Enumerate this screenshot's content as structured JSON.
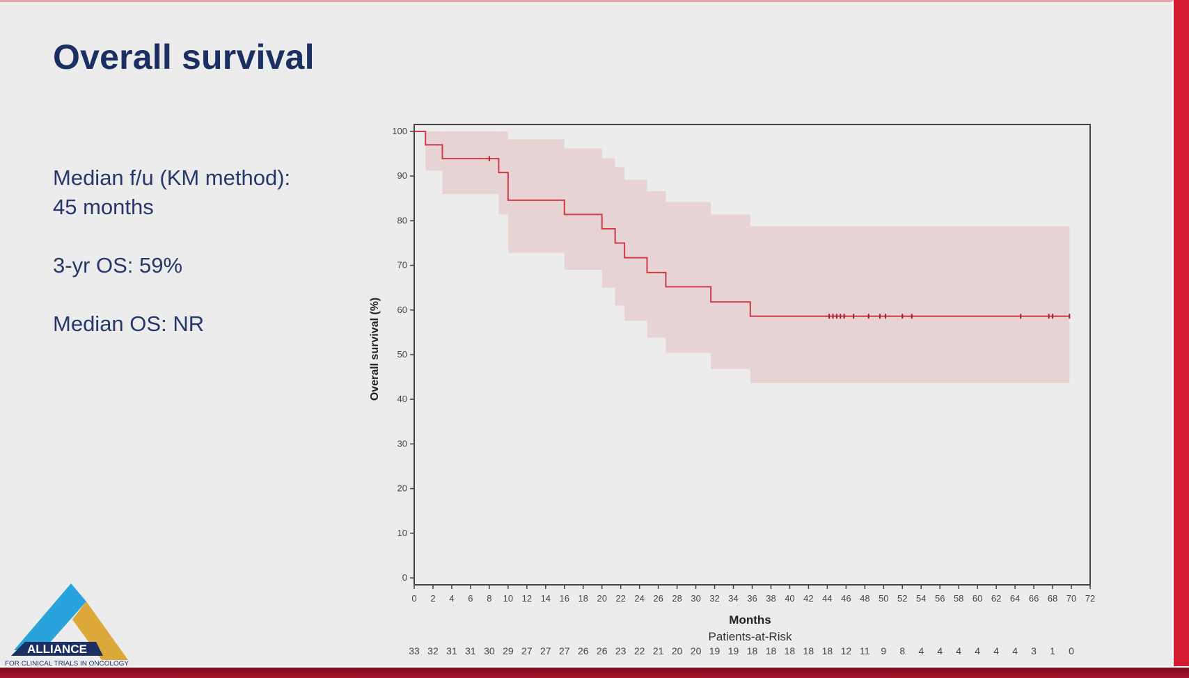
{
  "slide": {
    "title": "Overall survival",
    "stats": [
      {
        "label": "Median f/u (KM method):",
        "value": "45 months"
      },
      {
        "label": "3-yr OS:",
        "value": "59%"
      },
      {
        "label": "Median OS:",
        "value": "NR"
      }
    ],
    "logo": {
      "name": "ALLIANCE",
      "tagline": "FOR CLINICAL TRIALS IN ONCOLOGY",
      "colors": {
        "blue": "#29a3dc",
        "gold": "#dca83a",
        "navy": "#1b2f63"
      }
    }
  },
  "colors": {
    "title": "#1b2f63",
    "curve": "#d23a44",
    "band": "#e8d3d4",
    "axis": "#333333",
    "frame_red": "#d21c32"
  },
  "chart_data": {
    "type": "line",
    "subtype": "kaplan-meier step",
    "title": "",
    "xlabel": "Months",
    "ylabel": "Overall survival (%)",
    "xlim": [
      0,
      72
    ],
    "ylim": [
      0,
      100
    ],
    "xticks": [
      0,
      2,
      4,
      6,
      8,
      10,
      12,
      14,
      16,
      18,
      20,
      22,
      24,
      26,
      28,
      30,
      32,
      34,
      36,
      38,
      40,
      42,
      44,
      46,
      48,
      50,
      52,
      54,
      56,
      58,
      60,
      62,
      64,
      66,
      68,
      70,
      72
    ],
    "yticks": [
      0,
      10,
      20,
      30,
      40,
      50,
      60,
      70,
      80,
      90,
      100
    ],
    "grid": false,
    "legend": "none",
    "survival_steps": [
      {
        "t": 0,
        "s": 100
      },
      {
        "t": 1.2,
        "s": 97.0
      },
      {
        "t": 3.0,
        "s": 93.9
      },
      {
        "t": 9.0,
        "s": 90.8
      },
      {
        "t": 10.0,
        "s": 84.6
      },
      {
        "t": 16.0,
        "s": 81.4
      },
      {
        "t": 20.0,
        "s": 78.2
      },
      {
        "t": 21.4,
        "s": 75.0
      },
      {
        "t": 22.4,
        "s": 71.7
      },
      {
        "t": 24.8,
        "s": 68.4
      },
      {
        "t": 26.8,
        "s": 65.2
      },
      {
        "t": 31.6,
        "s": 61.8
      },
      {
        "t": 35.8,
        "s": 58.6
      }
    ],
    "curve_end": 69.8,
    "ci_band": [
      {
        "t": 0,
        "lo": 100,
        "hi": 100
      },
      {
        "t": 1.2,
        "lo": 91.2,
        "hi": 100
      },
      {
        "t": 3.0,
        "lo": 86.0,
        "hi": 100
      },
      {
        "t": 9.0,
        "lo": 81.4,
        "hi": 100
      },
      {
        "t": 10.0,
        "lo": 72.8,
        "hi": 98.2
      },
      {
        "t": 16.0,
        "lo": 69.0,
        "hi": 96.2
      },
      {
        "t": 20.0,
        "lo": 65.0,
        "hi": 94.0
      },
      {
        "t": 21.4,
        "lo": 61.0,
        "hi": 92.0
      },
      {
        "t": 22.4,
        "lo": 57.6,
        "hi": 89.2
      },
      {
        "t": 24.8,
        "lo": 53.8,
        "hi": 86.6
      },
      {
        "t": 26.8,
        "lo": 50.4,
        "hi": 84.2
      },
      {
        "t": 31.6,
        "lo": 46.8,
        "hi": 81.4
      },
      {
        "t": 35.8,
        "lo": 43.6,
        "hi": 78.8
      }
    ],
    "censor_times": [
      8.0,
      44.2,
      44.6,
      45.0,
      45.4,
      45.8,
      46.8,
      48.4,
      49.6,
      50.2,
      52.0,
      53.0,
      64.6,
      67.6,
      68.0,
      69.8
    ],
    "risk_table": {
      "label": "Patients-at-Risk",
      "times": [
        0,
        2,
        4,
        6,
        8,
        10,
        12,
        14,
        16,
        18,
        20,
        22,
        24,
        26,
        28,
        30,
        32,
        34,
        36,
        38,
        40,
        42,
        44,
        46,
        48,
        50,
        52,
        54,
        56,
        58,
        60,
        62,
        64,
        66,
        68,
        70
      ],
      "counts": [
        33,
        32,
        31,
        31,
        30,
        29,
        27,
        27,
        27,
        26,
        26,
        23,
        22,
        21,
        20,
        20,
        19,
        19,
        18,
        18,
        18,
        18,
        18,
        12,
        11,
        9,
        8,
        4,
        4,
        4,
        4,
        4,
        4,
        3,
        1,
        0
      ]
    }
  }
}
